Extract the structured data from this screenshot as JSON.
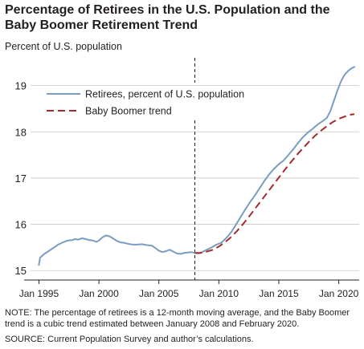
{
  "chart_data": {
    "type": "line",
    "title": "Percentage of Retirees in the U.S. Population and the Baby Boomer Retirement Trend",
    "ylabel": "Percent of U.S. population",
    "xlabel": "",
    "xlim": [
      1994.3,
      2021.7
    ],
    "ylim": [
      14.9,
      19.6
    ],
    "yticks": [
      15,
      16,
      17,
      18,
      19
    ],
    "xticks": [
      {
        "value": 1995,
        "label": "Jan 1995"
      },
      {
        "value": 2000,
        "label": "Jan 2000"
      },
      {
        "value": 2005,
        "label": "Jan 2005"
      },
      {
        "value": 2010,
        "label": "Jan 2010"
      },
      {
        "value": 2015,
        "label": "Jan 2015"
      },
      {
        "value": 2020,
        "label": "Jan 2020"
      }
    ],
    "grid": "horizontal",
    "legend_position": "top-left-inside",
    "vline": {
      "x": 2008.0,
      "style": "dashed"
    },
    "series": [
      {
        "name": "Retirees, percent of U.S. population",
        "color": "#7a9cc0",
        "style": "solid",
        "x": [
          1995.0,
          1995.1,
          1995.4,
          1995.8,
          1996.2,
          1996.6,
          1997.0,
          1997.4,
          1997.8,
          1998.0,
          1998.3,
          1998.6,
          1998.9,
          1999.2,
          1999.5,
          1999.8,
          2000.0,
          2000.3,
          2000.6,
          2000.9,
          2001.2,
          2001.5,
          2001.8,
          2002.1,
          2002.4,
          2002.8,
          2003.2,
          2003.6,
          2004.0,
          2004.4,
          2004.7,
          2005.0,
          2005.3,
          2005.6,
          2005.9,
          2006.2,
          2006.5,
          2006.8,
          2007.1,
          2007.4,
          2007.7,
          2008.0,
          2008.3,
          2008.6,
          2009.0,
          2009.4,
          2009.8,
          2010.2,
          2010.6,
          2011.0,
          2011.4,
          2011.8,
          2012.2,
          2012.6,
          2013.0,
          2013.4,
          2013.8,
          2014.2,
          2014.6,
          2015.0,
          2015.4,
          2015.8,
          2016.2,
          2016.6,
          2017.0,
          2017.4,
          2017.8,
          2018.2,
          2018.6,
          2019.0,
          2019.3,
          2019.6,
          2019.9,
          2020.2,
          2020.5,
          2020.8,
          2021.1,
          2021.3
        ],
        "values": [
          15.12,
          15.28,
          15.35,
          15.42,
          15.49,
          15.56,
          15.61,
          15.65,
          15.66,
          15.68,
          15.67,
          15.7,
          15.68,
          15.66,
          15.65,
          15.62,
          15.65,
          15.72,
          15.76,
          15.74,
          15.69,
          15.64,
          15.61,
          15.6,
          15.58,
          15.56,
          15.56,
          15.57,
          15.55,
          15.54,
          15.49,
          15.43,
          15.4,
          15.42,
          15.45,
          15.41,
          15.37,
          15.36,
          15.38,
          15.39,
          15.4,
          15.38,
          15.37,
          15.4,
          15.45,
          15.5,
          15.56,
          15.6,
          15.7,
          15.82,
          15.98,
          16.15,
          16.32,
          16.48,
          16.62,
          16.78,
          16.94,
          17.08,
          17.2,
          17.3,
          17.38,
          17.5,
          17.62,
          17.76,
          17.88,
          17.98,
          18.06,
          18.15,
          18.22,
          18.3,
          18.45,
          18.68,
          18.9,
          19.1,
          19.24,
          19.32,
          19.38,
          19.4
        ],
        "x_actual_last_note": ""
      },
      {
        "name": "Baby Boomer trend",
        "color": "#a32a2f",
        "style": "dashed",
        "x": [
          2008.0,
          2008.5,
          2009.0,
          2009.5,
          2010.0,
          2010.5,
          2011.0,
          2011.5,
          2012.0,
          2012.5,
          2013.0,
          2013.5,
          2014.0,
          2014.5,
          2015.0,
          2015.5,
          2016.0,
          2016.5,
          2017.0,
          2017.5,
          2018.0,
          2018.5,
          2019.0,
          2019.5,
          2020.0,
          2020.5,
          2021.0,
          2021.3
        ],
        "values": [
          15.38,
          15.38,
          15.41,
          15.45,
          15.52,
          15.61,
          15.72,
          15.85,
          16.0,
          16.16,
          16.33,
          16.5,
          16.67,
          16.84,
          17.01,
          17.18,
          17.34,
          17.5,
          17.64,
          17.78,
          17.91,
          18.02,
          18.12,
          18.21,
          18.28,
          18.33,
          18.37,
          18.38
        ]
      }
    ]
  },
  "note": "NOTE: The percentage of retirees is a 12-month moving average, and the Baby Boomer trend is a cubic trend estimated between January 2008 and February 2020.",
  "source": "SOURCE: Current Population Survey and author’s calculations."
}
